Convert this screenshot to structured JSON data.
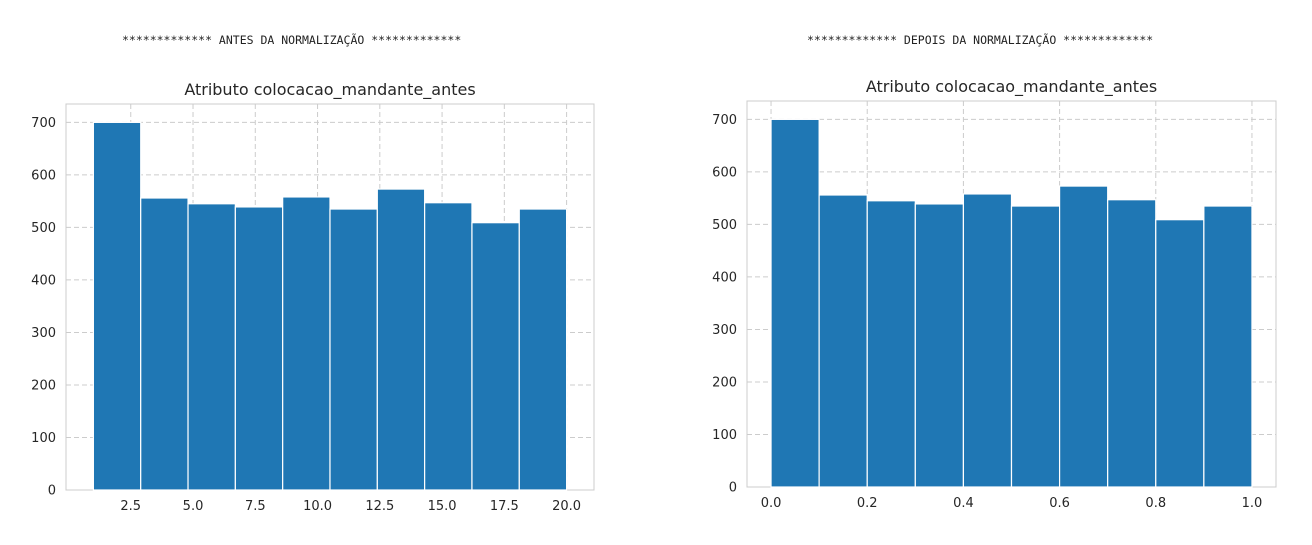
{
  "banners": {
    "left": "************* ANTES DA NORMALIZAÇÃO *************",
    "right": "************* DEPOIS DA NORMALIZAÇÃO *************"
  },
  "colors": {
    "bar": "#1f77b4",
    "grid": "#cccccc"
  },
  "chart_data": [
    {
      "type": "bar",
      "title": "Atributo colocacao_mandante_antes",
      "bin_edges": [
        1.0,
        2.9,
        4.8,
        6.7,
        8.6,
        10.5,
        12.4,
        14.3,
        16.2,
        18.1,
        20.0
      ],
      "values": [
        700,
        556,
        545,
        539,
        558,
        535,
        573,
        547,
        509,
        535
      ],
      "xlim": [
        -0.1,
        21.1
      ],
      "ylim": [
        0,
        735
      ],
      "xticks": [
        2.5,
        5.0,
        7.5,
        10.0,
        12.5,
        15.0,
        17.5,
        20.0
      ],
      "xtick_labels": [
        "2.5",
        "5.0",
        "7.5",
        "10.0",
        "12.5",
        "15.0",
        "17.5",
        "20.0"
      ],
      "yticks": [
        0,
        100,
        200,
        300,
        400,
        500,
        600,
        700
      ],
      "ytick_labels": [
        "0",
        "100",
        "200",
        "300",
        "400",
        "500",
        "600",
        "700"
      ],
      "grid": true
    },
    {
      "type": "bar",
      "title": "Atributo colocacao_mandante_antes",
      "bin_edges": [
        0.0,
        0.1,
        0.2,
        0.3,
        0.4,
        0.5,
        0.6,
        0.7,
        0.8,
        0.9,
        1.0
      ],
      "values": [
        700,
        556,
        545,
        539,
        558,
        535,
        573,
        547,
        509,
        535
      ],
      "xlim": [
        -0.05,
        1.05
      ],
      "ylim": [
        0,
        735
      ],
      "xticks": [
        0.0,
        0.2,
        0.4,
        0.6,
        0.8,
        1.0
      ],
      "xtick_labels": [
        "0.0",
        "0.2",
        "0.4",
        "0.6",
        "0.8",
        "1.0"
      ],
      "yticks": [
        0,
        100,
        200,
        300,
        400,
        500,
        600,
        700
      ],
      "ytick_labels": [
        "0",
        "100",
        "200",
        "300",
        "400",
        "500",
        "600",
        "700"
      ],
      "grid": true
    }
  ]
}
